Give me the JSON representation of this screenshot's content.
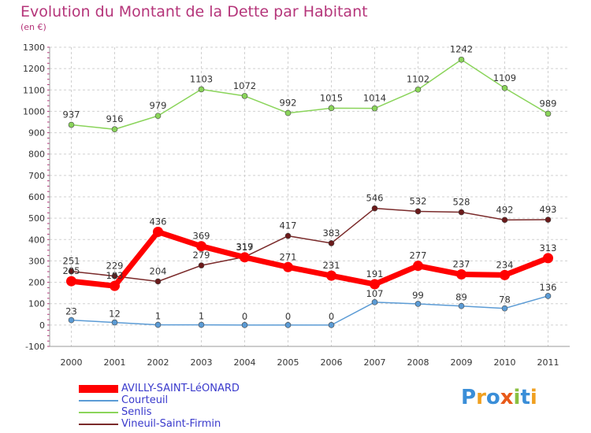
{
  "chart_data": {
    "type": "line",
    "title": "Evolution du Montant de la Dette par Habitant",
    "subtitle": "(en €)",
    "xlabel": "",
    "ylabel": "",
    "x": [
      "2000",
      "2001",
      "2002",
      "2003",
      "2004",
      "2005",
      "2006",
      "2007",
      "2008",
      "2009",
      "2010",
      "2011"
    ],
    "ylim": [
      -100,
      1300
    ],
    "yticks": [
      -100,
      0,
      100,
      200,
      300,
      400,
      500,
      600,
      700,
      800,
      900,
      1000,
      1100,
      1200,
      1300
    ],
    "grid": true,
    "legend_position": "bottom-left",
    "series": [
      {
        "name": "AVILLY-SAINT-LéONARD",
        "color": "#ff0000",
        "values": [
          205,
          183,
          436,
          369,
          317,
          271,
          231,
          191,
          277,
          237,
          234,
          313
        ]
      },
      {
        "name": "Courteuil",
        "color": "#5b9bd5",
        "values": [
          23,
          12,
          1,
          1,
          0,
          0,
          0,
          107,
          99,
          89,
          78,
          136
        ]
      },
      {
        "name": "Senlis",
        "color": "#8ad45a",
        "values": [
          937,
          916,
          979,
          1103,
          1072,
          992,
          1015,
          1014,
          1102,
          1242,
          1109,
          989
        ]
      },
      {
        "name": "Vineuil-Saint-Firmin",
        "color": "#7a2a2a",
        "values": [
          251,
          229,
          204,
          279,
          319,
          417,
          383,
          546,
          532,
          528,
          492,
          493
        ]
      }
    ]
  },
  "logo": {
    "text": "Proxiti"
  }
}
